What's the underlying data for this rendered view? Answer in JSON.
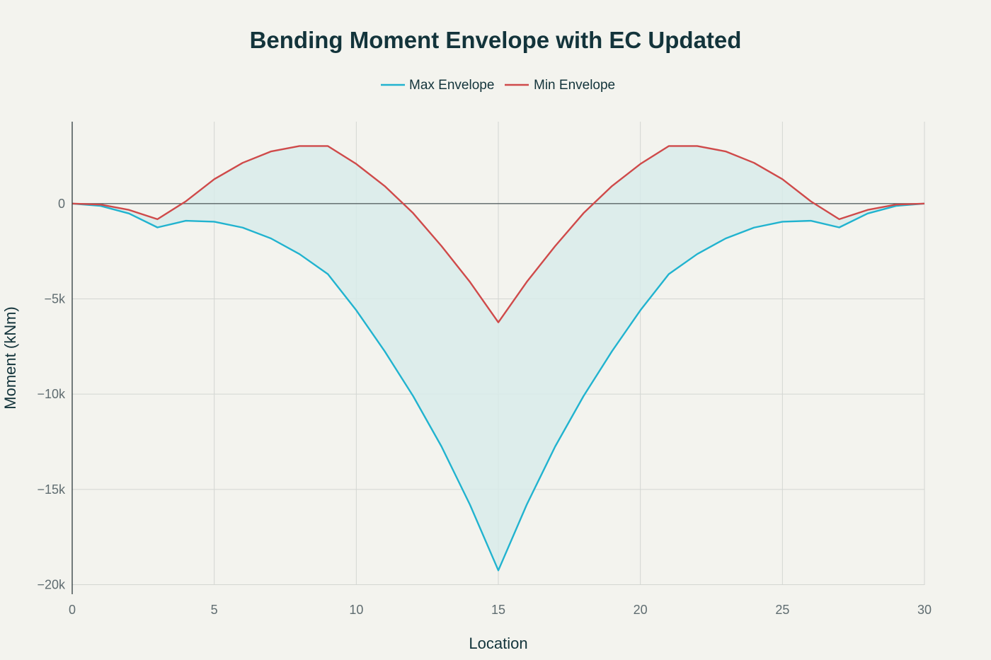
{
  "chart_data": {
    "type": "line",
    "title": "Bending Moment Envelope with EC Updated",
    "xlabel": "Location",
    "ylabel": "Moment (kNm)",
    "xlim": [
      0,
      30
    ],
    "ylim": [
      -20500,
      4300
    ],
    "xticks": [
      0,
      5,
      10,
      15,
      20,
      25,
      30
    ],
    "xtick_labels": [
      "0",
      "5",
      "10",
      "15",
      "20",
      "25",
      "30"
    ],
    "yticks": [
      0,
      -5000,
      -10000,
      -15000,
      -20000
    ],
    "ytick_labels": [
      "0",
      "−5k",
      "−10k",
      "−15k",
      "−20k"
    ],
    "grid": true,
    "legend_position": "top-center",
    "fill_between_series": true,
    "x": [
      0,
      1,
      2,
      3,
      4,
      5,
      6,
      7,
      8,
      9,
      10,
      11,
      12,
      13,
      14,
      15,
      16,
      17,
      18,
      19,
      20,
      21,
      22,
      23,
      24,
      25,
      26,
      27,
      28,
      29,
      30
    ],
    "series": [
      {
        "name": "Max Envelope",
        "color": "#21b3cf",
        "values": [
          0,
          -120,
          -520,
          -1250,
          -900,
          -950,
          -1260,
          -1830,
          -2650,
          -3700,
          -5600,
          -7750,
          -10100,
          -12750,
          -15800,
          -19250,
          -15800,
          -12750,
          -10100,
          -7750,
          -5600,
          -3700,
          -2650,
          -1830,
          -1260,
          -950,
          -900,
          -1250,
          -520,
          -120,
          0
        ]
      },
      {
        "name": "Min Envelope",
        "color": "#cf4a4a",
        "values": [
          0,
          -50,
          -330,
          -820,
          120,
          1280,
          2140,
          2740,
          3020,
          3020,
          2080,
          920,
          -500,
          -2230,
          -4110,
          -6230,
          -4110,
          -2230,
          -500,
          920,
          2080,
          3020,
          3020,
          2740,
          2140,
          1280,
          120,
          -820,
          -330,
          -50,
          0
        ]
      }
    ],
    "fill_color": "#d8ebea"
  }
}
